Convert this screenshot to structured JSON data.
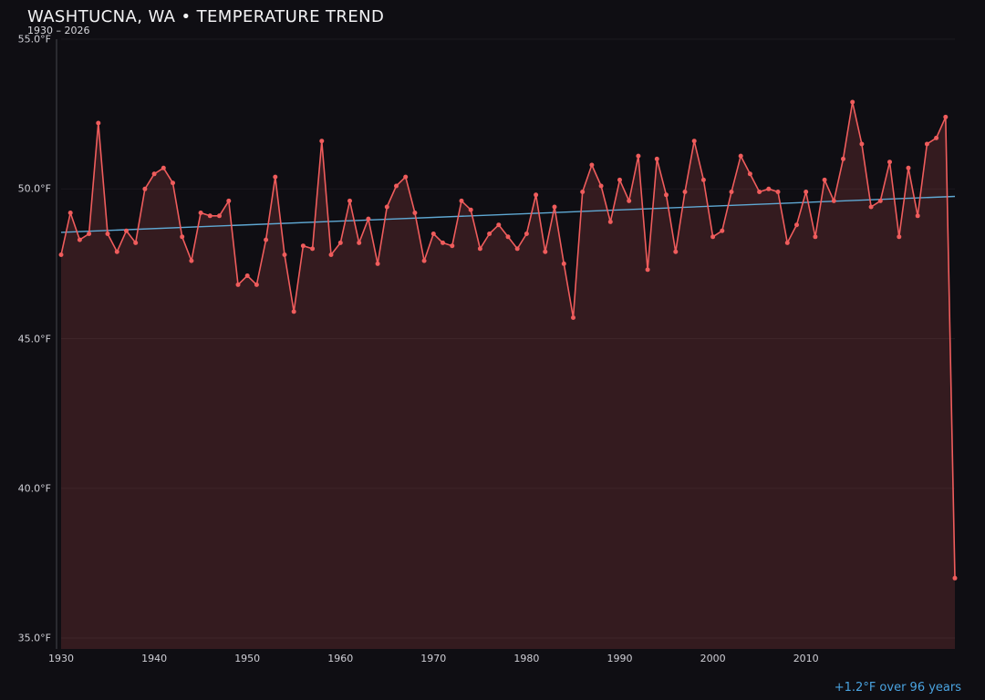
{
  "chart": {
    "title": "WASHTUCNA, WA • TEMPERATURE TREND",
    "subtitle": "1930 – 2026",
    "annotation": "+1.2°F over 96 years"
  },
  "chart_data": {
    "type": "line",
    "title": "WASHTUCNA, WA • TEMPERATURE TREND",
    "subtitle": "1930 – 2026",
    "xlabel": "",
    "ylabel": "",
    "x_range": [
      1930,
      2026
    ],
    "ylim": [
      35,
      55
    ],
    "grid": true,
    "legend": "none",
    "values": [
      47.8,
      49.2,
      48.3,
      48.5,
      52.2,
      48.5,
      47.9,
      48.6,
      48.2,
      50.0,
      50.5,
      50.7,
      50.2,
      48.4,
      47.6,
      49.2,
      49.1,
      49.1,
      49.6,
      46.8,
      47.1,
      46.8,
      48.3,
      50.4,
      47.8,
      45.9,
      48.1,
      48.0,
      51.6,
      47.8,
      48.2,
      49.6,
      48.2,
      49.0,
      47.5,
      49.4,
      50.1,
      50.4,
      49.2,
      47.6,
      48.5,
      48.2,
      48.1,
      49.6,
      49.3,
      48.0,
      48.5,
      48.8,
      48.4,
      48.0,
      48.5,
      49.8,
      47.9,
      49.4,
      47.5,
      45.7,
      49.9,
      50.8,
      50.1,
      48.9,
      50.3,
      49.6,
      51.1,
      47.3,
      51.0,
      49.8,
      47.9,
      49.9,
      51.6,
      50.3,
      48.4,
      48.6,
      49.9,
      51.1,
      50.5,
      49.9,
      50.0,
      49.9,
      48.2,
      48.8,
      49.9,
      48.4,
      50.3,
      49.6,
      51.0,
      52.9,
      51.5,
      49.4,
      49.6,
      50.9,
      48.4,
      50.7,
      49.1,
      51.5,
      51.7,
      52.4,
      37.0
    ],
    "trend": {
      "start_value": 48.55,
      "end_value": 49.75,
      "delta_label": "+1.2°F over 96 years"
    },
    "y_ticks": [
      {
        "value": 55,
        "label": "55.0°F"
      },
      {
        "value": 50,
        "label": "50.0°F"
      },
      {
        "value": 45,
        "label": "45.0°F"
      },
      {
        "value": 40,
        "label": "40.0°F"
      },
      {
        "value": 35,
        "label": "35.0°F"
      }
    ],
    "x_ticks": [
      {
        "value": 1930,
        "label": "1930"
      },
      {
        "value": 1940,
        "label": "1940"
      },
      {
        "value": 1950,
        "label": "1950"
      },
      {
        "value": 1960,
        "label": "1960"
      },
      {
        "value": 1970,
        "label": "1970"
      },
      {
        "value": 1980,
        "label": "1980"
      },
      {
        "value": 1990,
        "label": "1990"
      },
      {
        "value": 2000,
        "label": "2000"
      },
      {
        "value": 2010,
        "label": "2010"
      }
    ],
    "colors": {
      "background": "#0f0e13",
      "line": "#ef5c5c",
      "fill": "rgba(239,92,92,0.17)",
      "trend": "#5fa8d3",
      "annotation": "#4aa3e0"
    }
  }
}
